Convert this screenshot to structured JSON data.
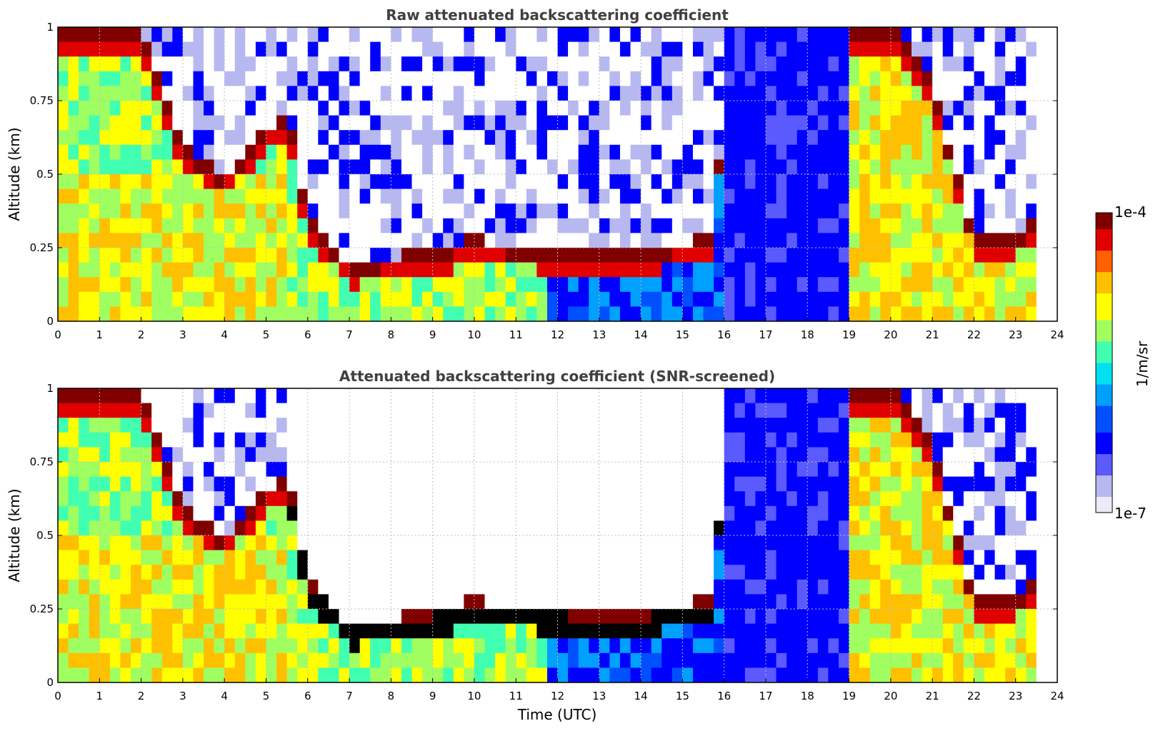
{
  "chart_data": [
    {
      "type": "heatmap",
      "title": "Raw attenuated backscattering coefficient",
      "ylabel": "Altitude (km)",
      "xlim": [
        0,
        24
      ],
      "ylim": [
        0,
        1
      ],
      "x_ticks": [
        0,
        1,
        2,
        3,
        4,
        5,
        6,
        7,
        8,
        9,
        10,
        11,
        12,
        13,
        14,
        15,
        16,
        17,
        18,
        19,
        20,
        21,
        22,
        23,
        24
      ],
      "y_ticks": [
        "0",
        "0.25",
        "0.5",
        "0.75",
        "1"
      ],
      "grid": true,
      "screened": false,
      "layer_top_km": [
        [
          0,
          1.0
        ],
        [
          1,
          1.0
        ],
        [
          2,
          1.0
        ],
        [
          3,
          0.6
        ],
        [
          4,
          0.5
        ],
        [
          5,
          0.65
        ],
        [
          5.5,
          0.72
        ],
        [
          6,
          0.36
        ],
        [
          7,
          0.2
        ],
        [
          8,
          0.22
        ],
        [
          9,
          0.24
        ],
        [
          10,
          0.28
        ],
        [
          11,
          0.26
        ],
        [
          12,
          0.25
        ],
        [
          13,
          0.23
        ],
        [
          14,
          0.24
        ],
        [
          15,
          0.27
        ],
        [
          15.8,
          0.3
        ],
        [
          16,
          1.0
        ],
        [
          18.8,
          1.0
        ],
        [
          19,
          1.0
        ],
        [
          20,
          1.0
        ],
        [
          21,
          0.8
        ],
        [
          22,
          0.3
        ],
        [
          23,
          0.3
        ],
        [
          23.6,
          0.35
        ]
      ]
    },
    {
      "type": "heatmap",
      "title": "Attenuated backscattering coefficient (SNR-screened)",
      "xlabel": "Time (UTC)",
      "ylabel": "Altitude (km)",
      "xlim": [
        0,
        24
      ],
      "ylim": [
        0,
        1
      ],
      "x_ticks": [
        0,
        1,
        2,
        3,
        4,
        5,
        6,
        7,
        8,
        9,
        10,
        11,
        12,
        13,
        14,
        15,
        16,
        17,
        18,
        19,
        20,
        21,
        22,
        23,
        24
      ],
      "y_ticks": [
        "0",
        "0.25",
        "0.5",
        "0.75",
        "1"
      ],
      "grid": true,
      "screened": true
    }
  ],
  "colorbar": {
    "label": "1/m/sr",
    "min_label": "1e-7",
    "max_label": "1e-4",
    "scale": "log",
    "colors": [
      "#ececf8",
      "#b8b8f0",
      "#5a5aff",
      "#0000ff",
      "#0050ff",
      "#00a0ff",
      "#00e0f0",
      "#40ffb0",
      "#a0ff60",
      "#ffff00",
      "#ffc000",
      "#ff6000",
      "#e00000",
      "#800000"
    ]
  }
}
